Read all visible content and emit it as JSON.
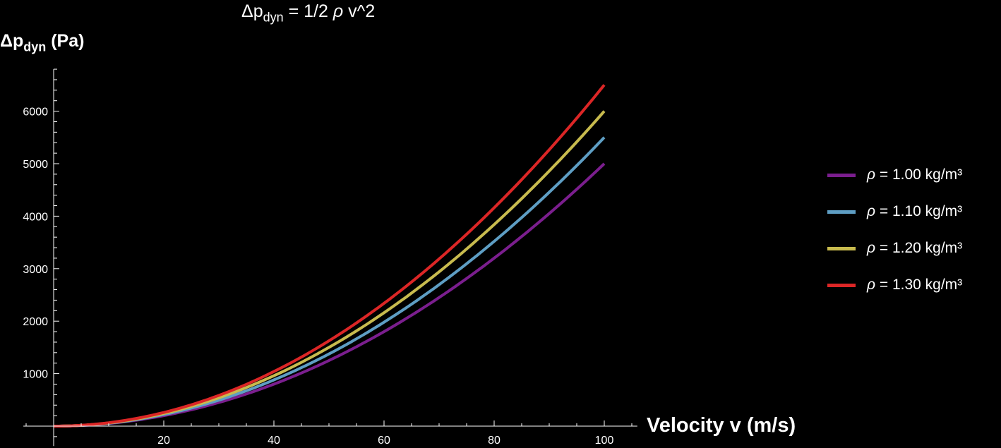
{
  "title": {
    "prefix": "Δp",
    "sub": "dyn",
    "rest_a": " = 1/2 ",
    "rho": "ρ",
    "rest_b": " v^2"
  },
  "ylabel": {
    "prefix": "Δp",
    "sub": "dyn",
    "rest": " (Pa)"
  },
  "xlabel": "Velocity v (m/s)",
  "legend": [
    {
      "rho": "ρ",
      "label": " = 1.00 kg/m³",
      "color": "#7b1e8e"
    },
    {
      "rho": "ρ",
      "label": " = 1.10 kg/m³",
      "color": "#5e9ec4"
    },
    {
      "rho": "ρ",
      "label": " = 1.20 kg/m³",
      "color": "#c8bb4e"
    },
    {
      "rho": "ρ",
      "label": " = 1.30 kg/m³",
      "color": "#dc2626"
    }
  ],
  "chart_data": {
    "type": "line",
    "title": "Δp_dyn = 1/2 ρ v^2",
    "xlabel": "Velocity v (m/s)",
    "ylabel": "Δp_dyn (Pa)",
    "xlim": [
      -5.5,
      106
    ],
    "ylim": [
      -380,
      6800
    ],
    "x_ticks": [
      20,
      40,
      60,
      80,
      100
    ],
    "x_minor_step": 5,
    "y_ticks": [
      1000,
      2000,
      3000,
      4000,
      5000,
      6000
    ],
    "y_minor_step": 200,
    "grid": false,
    "legend_position": "right",
    "x": [
      0,
      10,
      20,
      30,
      40,
      50,
      60,
      70,
      80,
      90,
      100
    ],
    "series": [
      {
        "name": "ρ = 1.00 kg/m³",
        "rho": 1.0,
        "color": "#7b1e8e",
        "values": [
          0,
          50,
          200,
          450,
          800,
          1250,
          1800,
          2450,
          3200,
          4050,
          5000
        ]
      },
      {
        "name": "ρ = 1.10 kg/m³",
        "rho": 1.1,
        "color": "#5e9ec4",
        "values": [
          0,
          55,
          220,
          495,
          880,
          1375,
          1980,
          2695,
          3520,
          4455,
          5500
        ]
      },
      {
        "name": "ρ = 1.20 kg/m³",
        "rho": 1.2,
        "color": "#c8bb4e",
        "values": [
          0,
          60,
          240,
          540,
          960,
          1500,
          2160,
          2940,
          3840,
          4860,
          6000
        ]
      },
      {
        "name": "ρ = 1.30 kg/m³",
        "rho": 1.3,
        "color": "#dc2626",
        "values": [
          0,
          65,
          260,
          585,
          1040,
          1625,
          2340,
          3185,
          4160,
          5265,
          6500
        ]
      }
    ]
  }
}
